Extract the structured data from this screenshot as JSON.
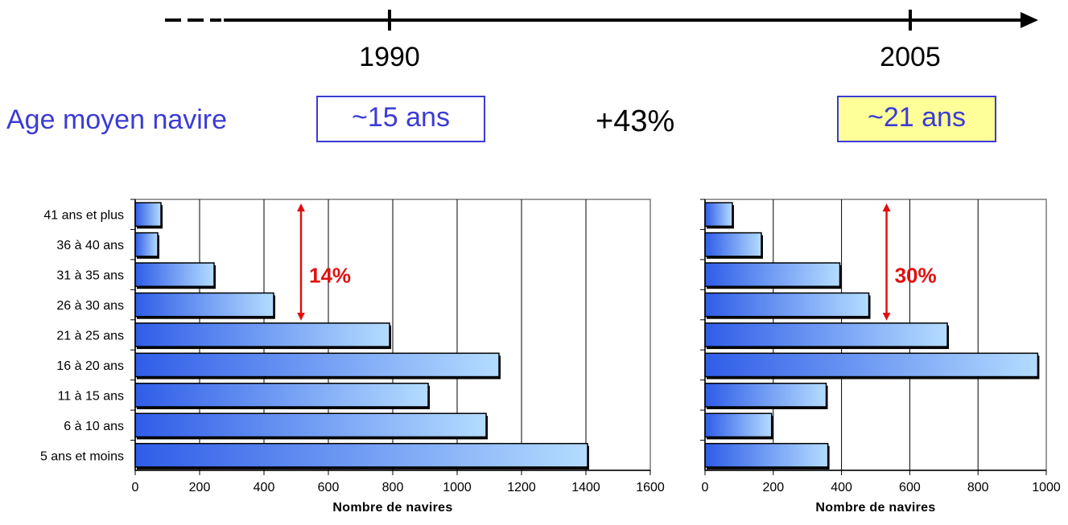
{
  "header": {
    "year_start": "1990",
    "year_end": "2005",
    "age_label": "Age moyen navire",
    "age_1990": "~15 ans",
    "age_2005": "~21 ans",
    "change": "+43%",
    "box_2005_color": "#ffff9a",
    "accent_color": "#3b3bd6"
  },
  "chart_data": [
    {
      "type": "bar",
      "orientation": "horizontal",
      "categories": [
        "41 ans et plus",
        "36 à 40 ans",
        "31 à 35 ans",
        "26 à 30 ans",
        "21 à 25 ans",
        "16 à 20 ans",
        "11 à 15 ans",
        "6 à 10 ans",
        "5 ans et moins"
      ],
      "values": [
        80,
        70,
        245,
        430,
        790,
        1130,
        910,
        1090,
        1405
      ],
      "xlabel": "Nombre de navires",
      "xlim": [
        0,
        1600
      ],
      "xticks": [
        "0",
        "200",
        "400",
        "600",
        "800",
        "1000",
        "1200",
        "1400",
        "1600"
      ],
      "grid": "vertical",
      "bar_color_start": "#2f5de8",
      "bar_color_end": "#b4dcff",
      "annotation": {
        "text": "14%",
        "color": "#e01010",
        "from_category": "41 ans et plus",
        "to_category": "26 à 30 ans",
        "x_value": 515
      }
    },
    {
      "type": "bar",
      "orientation": "horizontal",
      "categories": [
        "41 ans et plus",
        "36 à 40 ans",
        "31 à 35 ans",
        "26 à 30 ans",
        "21 à 25 ans",
        "16 à 20 ans",
        "11 à 15 ans",
        "6 à 10 ans",
        "5 ans et moins"
      ],
      "values": [
        80,
        165,
        395,
        480,
        710,
        975,
        355,
        195,
        360
      ],
      "xlabel": "Nombre de navires",
      "xlim": [
        0,
        1000
      ],
      "xticks": [
        "0",
        "200",
        "400",
        "600",
        "800",
        "1000"
      ],
      "grid": "vertical",
      "bar_color_start": "#2f5de8",
      "bar_color_end": "#b4dcff",
      "annotation": {
        "text": "30%",
        "color": "#e01010",
        "from_category": "41 ans et plus",
        "to_category": "26 à 30 ans",
        "x_value": 532
      }
    }
  ]
}
